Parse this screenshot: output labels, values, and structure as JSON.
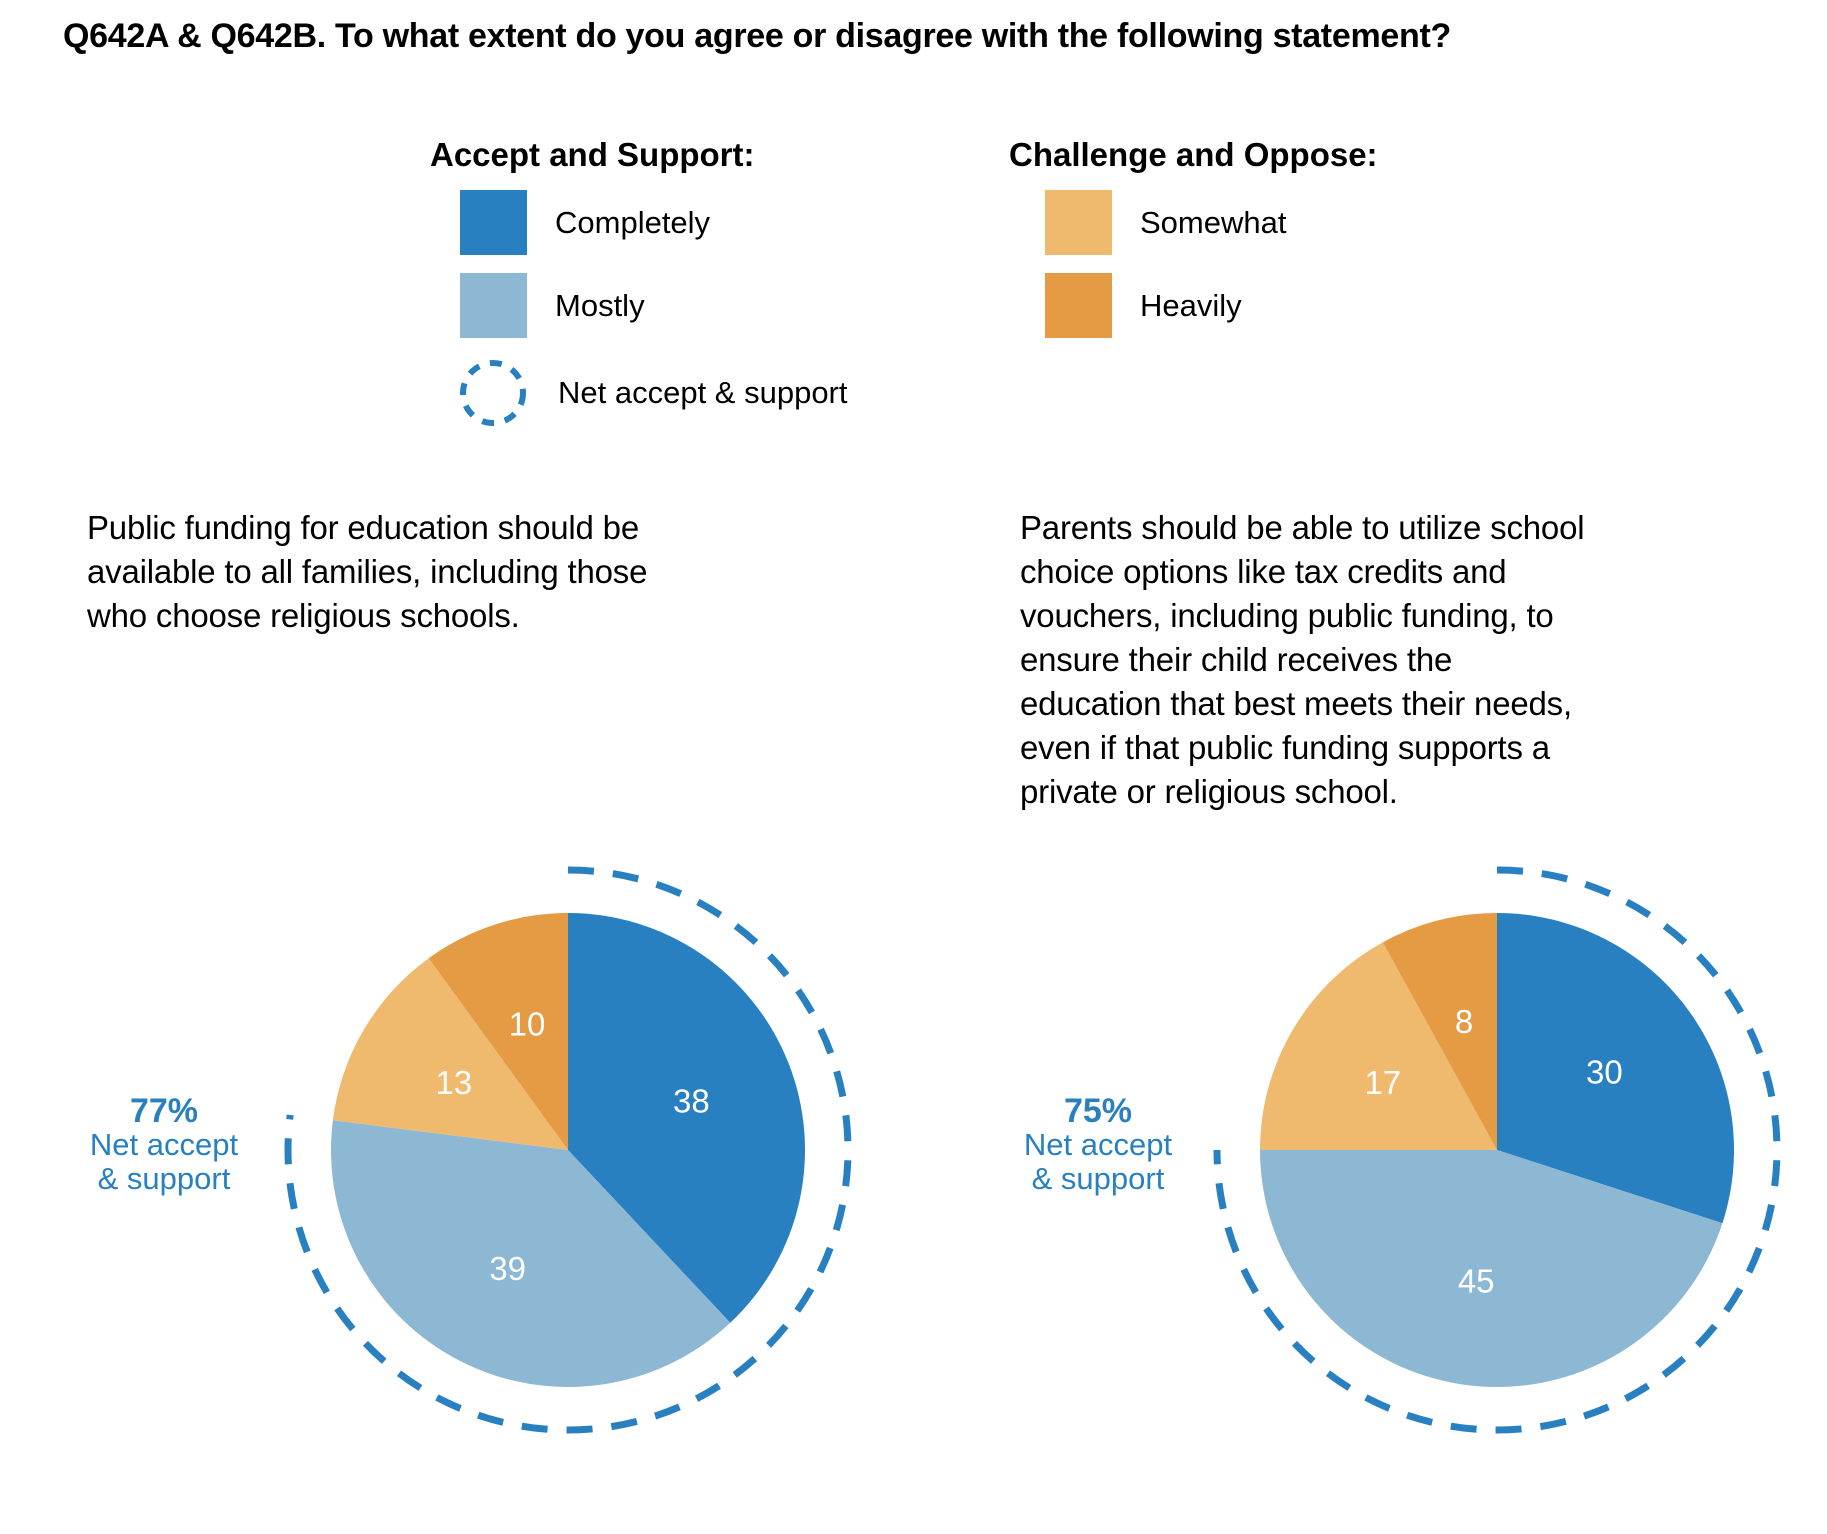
{
  "title": "Q642A & Q642B. To what extent do you agree or disagree with the following statement?",
  "colors": {
    "accent_blue": "#2980C1",
    "completely_blue": "#2980C1",
    "mostly_blue": "#8DB8D3",
    "somewhat_orange": "#EFBA6E",
    "heavily_orange": "#E49B44",
    "value_label_white": "#FFFFFF"
  },
  "legend": {
    "accept_group": {
      "heading": "Accept and Support:",
      "items": [
        {
          "label": "Completely",
          "swatch": "square",
          "color": "#2980C1"
        },
        {
          "label": "Mostly",
          "swatch": "square",
          "color": "#8DB8D3"
        },
        {
          "label": "Net accept & support",
          "swatch": "dashed-circle",
          "color": "#2980C1"
        }
      ]
    },
    "oppose_group": {
      "heading": "Challenge and Oppose:",
      "items": [
        {
          "label": "Somewhat",
          "swatch": "square",
          "color": "#EFBA6E"
        },
        {
          "label": "Heavily",
          "swatch": "square",
          "color": "#E49B44"
        }
      ]
    }
  },
  "chart_data": [
    {
      "type": "pie",
      "statement": "Public funding for education should be available to all families, including those who choose religious schools.",
      "statement_lines": [
        "Public funding for education should be",
        "available to all families, including those",
        "who choose religious schools."
      ],
      "categories": [
        "Completely",
        "Mostly",
        "Somewhat",
        "Heavily"
      ],
      "values": [
        38,
        39,
        13,
        10
      ],
      "colors": [
        "#2980C1",
        "#8DB8D3",
        "#EFBA6E",
        "#E49B44"
      ],
      "start": "12-oclock",
      "direction": "clockwise",
      "net_value": 77,
      "net_label": {
        "pct": "77%",
        "line1": "Net accept",
        "line2": "& support"
      }
    },
    {
      "type": "pie",
      "statement": "Parents should be able to utilize school choice options like tax credits and vouchers, including public funding, to ensure their child receives the education that best meets their needs, even if that public funding supports a private or religious school.",
      "statement_lines": [
        "Parents should be able to utilize school",
        "choice options like tax credits and",
        "vouchers, including public funding, to",
        "ensure their child receives the",
        "education that best meets their needs,",
        "even if that public funding supports a",
        "private or religious school."
      ],
      "categories": [
        "Completely",
        "Mostly",
        "Somewhat",
        "Heavily"
      ],
      "values": [
        30,
        45,
        17,
        8
      ],
      "colors": [
        "#2980C1",
        "#8DB8D3",
        "#EFBA6E",
        "#E49B44"
      ],
      "start": "12-oclock",
      "direction": "clockwise",
      "net_value": 75,
      "net_label": {
        "pct": "75%",
        "line1": "Net accept",
        "line2": "& support"
      }
    }
  ]
}
